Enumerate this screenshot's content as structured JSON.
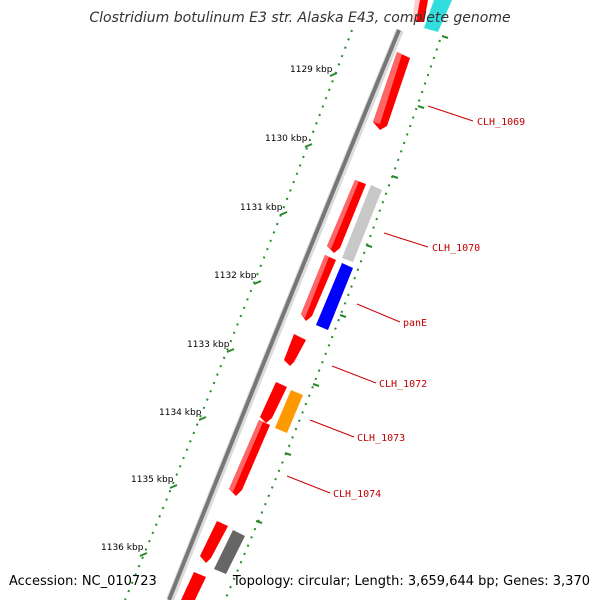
{
  "title": "Clostridium botulinum E3 str. Alaska E43, complete genome",
  "footer": {
    "accession": "Accession: NC_010723",
    "stats": "Topology: circular; Length: 3,659,644 bp; Genes: 3,370"
  },
  "colors": {
    "backbone": "#8a8a8a",
    "tick": "#2a8a2a",
    "cds_red": "#ff0000",
    "gray_gene": "#c8c8c8",
    "blue_gene": "#0000ff",
    "orange_gene": "#ff9900",
    "dark_gene": "#666666",
    "cyan_gene": "#33dddd",
    "label_line": "#cc0000"
  },
  "kbp_labels": [
    "1129 kbp",
    "1130 kbp",
    "1131 kbp",
    "1132 kbp",
    "1133 kbp",
    "1134 kbp",
    "1135 kbp",
    "1136 kbp"
  ],
  "gene_labels": [
    "CLH_1069",
    "CLH_1070",
    "panE",
    "CLH_1072",
    "CLH_1073",
    "CLH_1074"
  ]
}
